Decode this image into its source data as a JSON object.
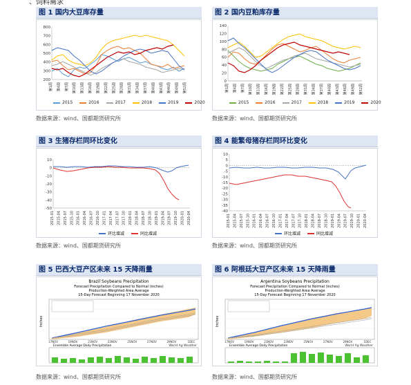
{
  "header": {
    "partial_text": "、饲料需求"
  },
  "figures": [
    {
      "title": "图 1  国内大豆库存量",
      "source": "数据来源：wind、国都期货研究所",
      "y_ticks": [
        "800",
        "700",
        "600",
        "500",
        "400",
        "300",
        "200"
      ],
      "x_ticks": [
        "第1周",
        "第4周",
        "第7周",
        "第10周",
        "第13周",
        "第16周",
        "第19周",
        "第22周",
        "第25周",
        "第28周",
        "第31周",
        "第34周",
        "第37周",
        "第40周",
        "第43周",
        "第46周",
        "第49周",
        "第52周"
      ],
      "legend": [
        {
          "name": "2015",
          "color": "#5b9bd5"
        },
        {
          "name": "2016",
          "color": "#ed7d31"
        },
        {
          "name": "2017",
          "color": "#a5a5a5"
        },
        {
          "name": "2018",
          "color": "#ffc000"
        },
        {
          "name": "2019",
          "color": "#4472c4"
        },
        {
          "name": "2020",
          "color": "#c00000"
        }
      ]
    },
    {
      "title": "图 2  国内豆粕库存量",
      "source": "数据来源：wind、国都期货研究所",
      "y_ticks": [
        "140",
        "120",
        "100",
        "80",
        "60",
        "40",
        "20",
        "0"
      ],
      "x_ticks": [
        "第1周",
        "第4周",
        "第7周",
        "第10周",
        "第13周",
        "第16周",
        "第19周",
        "第22周",
        "第25周",
        "第28周",
        "第31周",
        "第34周",
        "第37周",
        "第40周",
        "第43周",
        "第46周",
        "第49周",
        "第52周"
      ],
      "legend": [
        {
          "name": "2015",
          "color": "#70ad47"
        },
        {
          "name": "2016",
          "color": "#ed7d31"
        },
        {
          "name": "2017",
          "color": "#a5a5a5"
        },
        {
          "name": "2018",
          "color": "#ffc000"
        },
        {
          "name": "2019",
          "color": "#4472c4"
        },
        {
          "name": "2020",
          "color": "#c00000"
        }
      ]
    },
    {
      "title": "图 3  生猪存栏同环比变化",
      "source": "数据来源：wind、国都期货研究所",
      "y_ticks": [
        "10",
        "0",
        "-10",
        "-20",
        "-30",
        "-40",
        "-50"
      ],
      "x_ticks": [
        "2015-01",
        "2015-04",
        "2015-07",
        "2015-10",
        "2016-01",
        "2016-04",
        "2016-07",
        "2016-10",
        "2017-01",
        "2017-04",
        "2017-07",
        "2017-10",
        "2018-01",
        "2018-04",
        "2018-07",
        "2018-10",
        "2019-01",
        "2019-04",
        "2019-07",
        "2019-10",
        "2020-01",
        "2020-04"
      ],
      "legend": [
        {
          "name": "环比增减",
          "color": "#4472c4"
        },
        {
          "name": "同比增减",
          "color": "#e03030"
        }
      ]
    },
    {
      "title": "图 4  能繁母猪存栏同环比变化",
      "source": "数据来源：wind、国都期货研究所",
      "y_ticks": [
        "10",
        "5",
        "0",
        "-5",
        "-10",
        "-15",
        "-20",
        "-25",
        "-30",
        "-35",
        "-40"
      ],
      "x_ticks": [
        "2015-01",
        "2015-04",
        "2015-07",
        "2015-10",
        "2016-01",
        "2016-04",
        "2016-07",
        "2016-10",
        "2017-01",
        "2017-04",
        "2017-07",
        "2017-10",
        "2018-01",
        "2018-04",
        "2018-07",
        "2018-10",
        "2019-01",
        "2019-04",
        "2019-07",
        "2019-10",
        "2020-01",
        "2020-04"
      ],
      "legend": [
        {
          "name": "环比增减",
          "color": "#4472c4"
        },
        {
          "name": "同比增减",
          "color": "#e03030"
        }
      ]
    },
    {
      "title": "图 5  巴西大豆产区未来 15 天降雨量",
      "source": "数据来源：wind、国都期货研究所",
      "inner_title": [
        "Brazil Soybeans Precipitation",
        "Forecast Precipitation Compared to Normal (inches)",
        "Production-Weighted Area Average",
        "15-Day Forecast Beginning 17 November 2020"
      ],
      "bottom_caption": "Ensemble Average Daily Precipitation",
      "ylabel": "Inches",
      "x_ticks": [
        "17NOV",
        "19NOV",
        "21NOV",
        "23NOV",
        "25NOV",
        "27NOV",
        "29NOV",
        "1DEC"
      ],
      "logo": "World Ag Weather"
    },
    {
      "title": "图 6  阿根廷大豆产区未来 15 天降雨量",
      "source": "数据来源：wind、国都期货研究所",
      "inner_title": [
        "Argentina Soybeans Precipitation",
        "Forecast Precipitation Compared to Normal (inches)",
        "Production-Weighted Area Average",
        "15-Day Forecast Beginning 17 November 2020"
      ],
      "bottom_caption": "Ensemble Average Daily Precipitation",
      "ylabel": "Inches",
      "x_ticks": [
        "17NOV",
        "19NOV",
        "21NOV",
        "23NOV",
        "25NOV",
        "27NOV",
        "29NOV",
        "1DEC"
      ],
      "logo": "World Ag Weather"
    }
  ]
}
